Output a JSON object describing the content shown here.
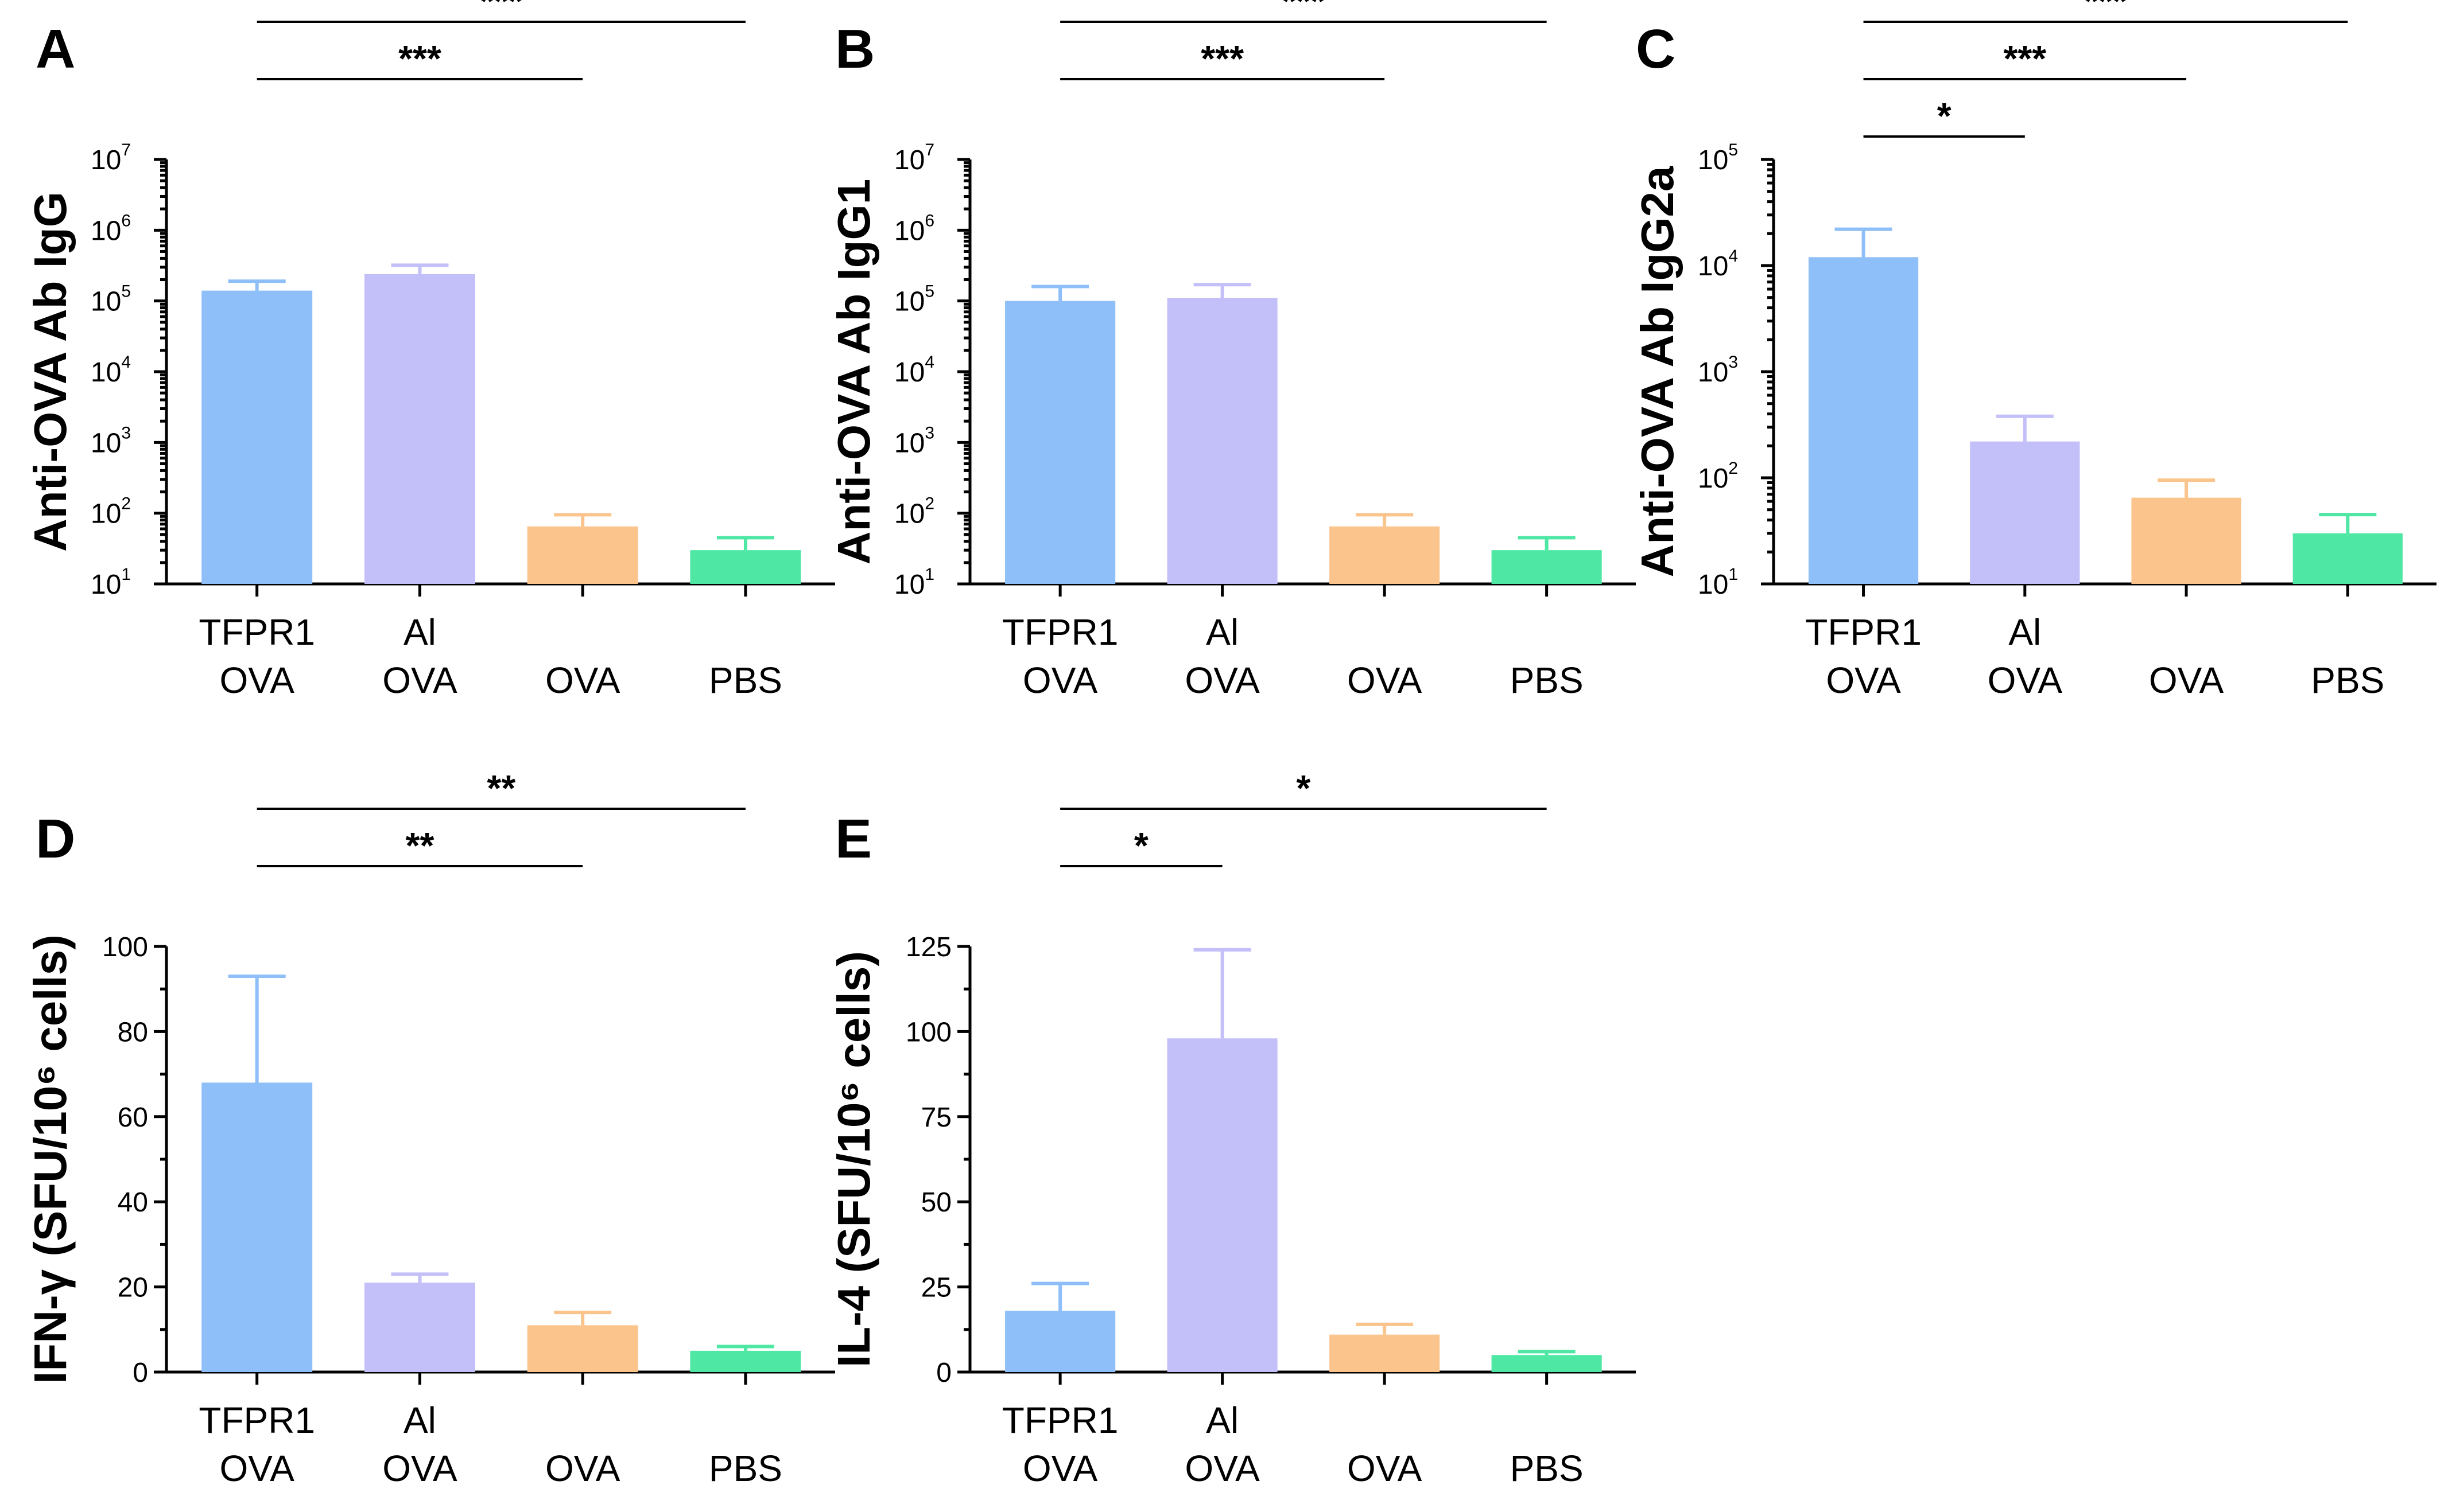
{
  "chart_data": [
    {
      "panel": "A",
      "type": "bar",
      "scale": "log",
      "ylabel": "Anti-OVA Ab IgG",
      "ylim": [
        10,
        10000000
      ],
      "ticks": [
        {
          "base": "10",
          "exp": "1"
        },
        {
          "base": "10",
          "exp": "2"
        },
        {
          "base": "10",
          "exp": "3"
        },
        {
          "base": "10",
          "exp": "4"
        },
        {
          "base": "10",
          "exp": "5"
        },
        {
          "base": "10",
          "exp": "6"
        },
        {
          "base": "10",
          "exp": "7"
        }
      ],
      "categories": [
        {
          "l1": "TFPR1",
          "l2": "OVA"
        },
        {
          "l1": "Al",
          "l2": "OVA"
        },
        {
          "l1": "",
          "l2": "OVA"
        },
        {
          "l1": "",
          "l2": "PBS"
        }
      ],
      "values": [
        140000,
        240000,
        65,
        30
      ],
      "errors": [
        190000,
        320000,
        95,
        45
      ],
      "colors": [
        "#8fbff8",
        "#c3bff8",
        "#fbc48c",
        "#4ee8a4"
      ],
      "significance": [
        {
          "from": 0,
          "to": 2,
          "label": "***",
          "level": 1
        },
        {
          "from": 0,
          "to": 3,
          "label": "***",
          "level": 2
        }
      ]
    },
    {
      "panel": "B",
      "type": "bar",
      "scale": "log",
      "ylabel": "Anti-OVA Ab IgG1",
      "ylim": [
        10,
        10000000
      ],
      "ticks": [
        {
          "base": "10",
          "exp": "1"
        },
        {
          "base": "10",
          "exp": "2"
        },
        {
          "base": "10",
          "exp": "3"
        },
        {
          "base": "10",
          "exp": "4"
        },
        {
          "base": "10",
          "exp": "5"
        },
        {
          "base": "10",
          "exp": "6"
        },
        {
          "base": "10",
          "exp": "7"
        }
      ],
      "categories": [
        {
          "l1": "TFPR1",
          "l2": "OVA"
        },
        {
          "l1": "Al",
          "l2": "OVA"
        },
        {
          "l1": "",
          "l2": "OVA"
        },
        {
          "l1": "",
          "l2": "PBS"
        }
      ],
      "values": [
        100000,
        110000,
        65,
        30
      ],
      "errors": [
        160000,
        170000,
        95,
        45
      ],
      "colors": [
        "#8fbff8",
        "#c3bff8",
        "#fbc48c",
        "#4ee8a4"
      ],
      "significance": [
        {
          "from": 0,
          "to": 2,
          "label": "***",
          "level": 1
        },
        {
          "from": 0,
          "to": 3,
          "label": "***",
          "level": 2
        }
      ]
    },
    {
      "panel": "C",
      "type": "bar",
      "scale": "log",
      "ylabel": "Anti-OVA Ab IgG2a",
      "ylim": [
        10,
        100000
      ],
      "ticks": [
        {
          "base": "10",
          "exp": "1"
        },
        {
          "base": "10",
          "exp": "2"
        },
        {
          "base": "10",
          "exp": "3"
        },
        {
          "base": "10",
          "exp": "4"
        },
        {
          "base": "10",
          "exp": "5"
        }
      ],
      "categories": [
        {
          "l1": "TFPR1",
          "l2": "OVA"
        },
        {
          "l1": "Al",
          "l2": "OVA"
        },
        {
          "l1": "",
          "l2": "OVA"
        },
        {
          "l1": "",
          "l2": "PBS"
        }
      ],
      "values": [
        12000,
        220,
        65,
        30
      ],
      "errors": [
        22000,
        380,
        95,
        45
      ],
      "colors": [
        "#8fbff8",
        "#c3bff8",
        "#fbc48c",
        "#4ee8a4"
      ],
      "significance": [
        {
          "from": 0,
          "to": 1,
          "label": "*",
          "level": 0
        },
        {
          "from": 0,
          "to": 2,
          "label": "***",
          "level": 1
        },
        {
          "from": 0,
          "to": 3,
          "label": "***",
          "level": 2
        }
      ]
    },
    {
      "panel": "D",
      "type": "bar",
      "scale": "linear",
      "ylabel": "IFN-γ  (SFU/10⁶ cells)",
      "ylim": [
        0,
        100
      ],
      "ticks": [
        {
          "base": "0"
        },
        {
          "base": "20"
        },
        {
          "base": "40"
        },
        {
          "base": "60"
        },
        {
          "base": "80"
        },
        {
          "base": "100"
        }
      ],
      "categories": [
        {
          "l1": "TFPR1",
          "l2": "OVA"
        },
        {
          "l1": "Al",
          "l2": "OVA"
        },
        {
          "l1": "",
          "l2": "OVA"
        },
        {
          "l1": "",
          "l2": "PBS"
        }
      ],
      "values": [
        68,
        21,
        11,
        5
      ],
      "errors": [
        93,
        23,
        14,
        6
      ],
      "colors": [
        "#8fbff8",
        "#c3bff8",
        "#fbc48c",
        "#4ee8a4"
      ],
      "significance": [
        {
          "from": 0,
          "to": 2,
          "label": "**",
          "level": 1
        },
        {
          "from": 0,
          "to": 3,
          "label": "**",
          "level": 2
        }
      ]
    },
    {
      "panel": "E",
      "type": "bar",
      "scale": "linear",
      "ylabel": "IL-4  (SFU/10⁶ cells)",
      "ylim": [
        0,
        125
      ],
      "ticks": [
        {
          "base": "0"
        },
        {
          "base": "25"
        },
        {
          "base": "50"
        },
        {
          "base": "75"
        },
        {
          "base": "100"
        },
        {
          "base": "125"
        }
      ],
      "categories": [
        {
          "l1": "TFPR1",
          "l2": "OVA"
        },
        {
          "l1": "Al",
          "l2": "OVA"
        },
        {
          "l1": "",
          "l2": "OVA"
        },
        {
          "l1": "",
          "l2": "PBS"
        }
      ],
      "values": [
        18,
        98,
        11,
        5
      ],
      "errors": [
        26,
        124,
        14,
        6
      ],
      "colors": [
        "#8fbff8",
        "#c3bff8",
        "#fbc48c",
        "#4ee8a4"
      ],
      "significance": [
        {
          "from": 0,
          "to": 1,
          "label": "*",
          "level": 1
        },
        {
          "from": 0,
          "to": 3,
          "label": "*",
          "level": 2
        }
      ]
    }
  ]
}
